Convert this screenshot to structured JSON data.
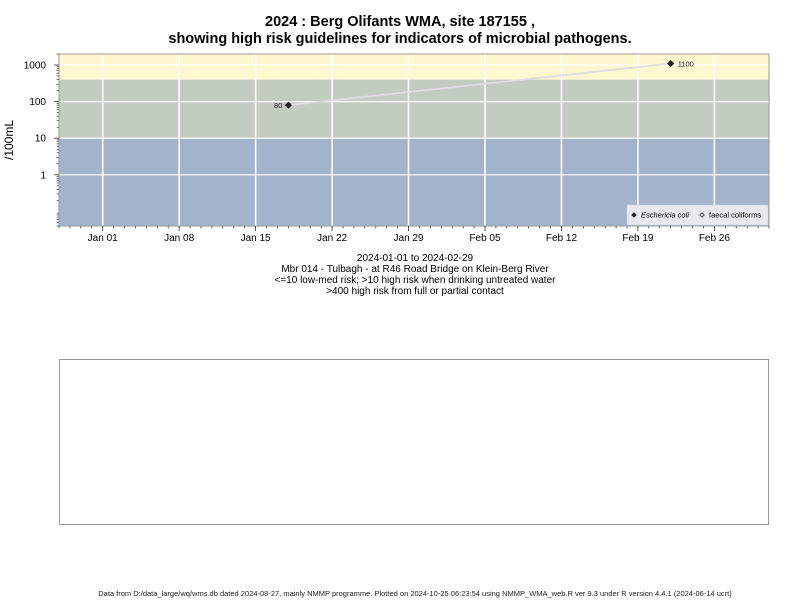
{
  "title_line1": "2024 : Berg Olifants WMA, site 187155 ,",
  "title_line2": "showing high risk guidelines for indicators of microbial pathogens.",
  "subtitle_lines": [
    "2024-01-01 to 2024-02-29",
    "Mbr 014 - Tulbagh - at R46 Road Bridge on Klein-Berg River",
    "<=10 low-med risk; >10 high risk when drinking untreated water",
    ">400 high risk from full or partial contact"
  ],
  "footer": "Data from D:/data_large/wq/wms.db dated 2024-08-27, mainly NMMP programme. Plotted on 2024-10-25 06:23:54 using NMMP_WMA_web.R ver 9.3 under R version 4.4.1 (2024-06-14 ucrt)",
  "chart_data": {
    "type": "line",
    "y_scale": "log",
    "ylabel": "/100mL",
    "xlabel": "",
    "x_range": [
      "2023-12-28",
      "2024-03-02"
    ],
    "y_range": [
      0.04,
      2000
    ],
    "x_ticks": [
      "Jan 01",
      "Jan 08",
      "Jan 15",
      "Jan 22",
      "Jan 29",
      "Feb 05",
      "Feb 12",
      "Feb 19",
      "Feb 26"
    ],
    "x_tick_dates": [
      "2024-01-01",
      "2024-01-08",
      "2024-01-15",
      "2024-01-22",
      "2024-01-29",
      "2024-02-05",
      "2024-02-12",
      "2024-02-19",
      "2024-02-26"
    ],
    "y_ticks": [
      1,
      10,
      100,
      1000
    ],
    "y_tick_labels": [
      "1",
      "10",
      "100",
      "1000"
    ],
    "grid": true,
    "bands": [
      {
        "from": 0.04,
        "to": 10,
        "color": "#a2b3cb",
        "meaning": "low-med risk"
      },
      {
        "from": 10,
        "to": 400,
        "color": "#c2ccc1",
        "meaning": "high risk when drinking untreated water"
      },
      {
        "from": 400,
        "to": 2000,
        "color": "#fff7cf",
        "meaning": "high risk from full or partial contact"
      }
    ],
    "series": [
      {
        "name": "Eschericia coli",
        "marker": "filled-diamond",
        "color": "#222222",
        "points": [
          {
            "x": "2024-01-18",
            "y": 80
          },
          {
            "x": "2024-02-22",
            "y": 1100
          }
        ],
        "point_labels": [
          "80",
          "1100"
        ]
      },
      {
        "name": "faecal coliforms",
        "marker": "open-diamond",
        "color": "#222222",
        "points": []
      }
    ],
    "line_color": "#dddddd",
    "legend_position": "bottom-right"
  }
}
